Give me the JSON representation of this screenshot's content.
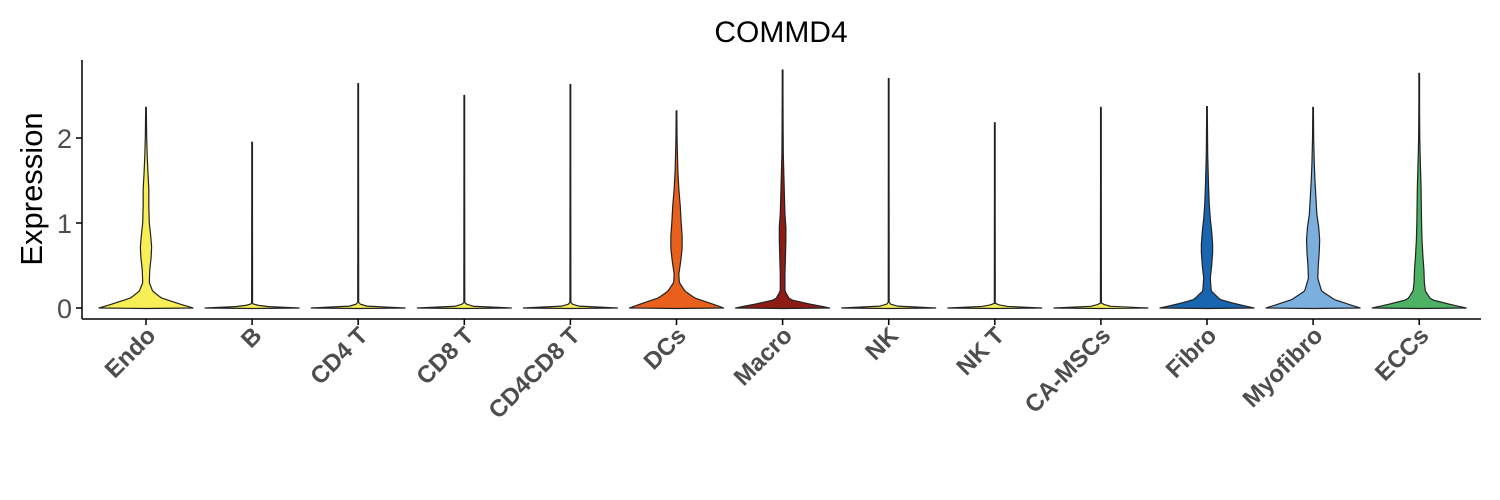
{
  "chart_data": {
    "type": "violin",
    "title": "COMMD4",
    "xlabel": "",
    "ylabel": "Expression",
    "ylim": [
      -0.1,
      2.85
    ],
    "yticks": [
      0,
      1,
      2
    ],
    "grid": false,
    "legend": "none",
    "categories": [
      "Endo",
      "B",
      "CD4 T",
      "CD8 T",
      "CD4CD8 T",
      "DCs",
      "Macro",
      "NK",
      "NK T",
      "CA-MSCs",
      "Fibro",
      "Myofibro",
      "ECCs"
    ],
    "series": [
      {
        "category": "Endo",
        "color": "#F7EF55",
        "max": 2.36,
        "profile": [
          [
            0,
            1.0
          ],
          [
            0.05,
            0.7
          ],
          [
            0.12,
            0.32
          ],
          [
            0.2,
            0.14
          ],
          [
            0.3,
            0.07
          ],
          [
            0.45,
            0.08
          ],
          [
            0.6,
            0.11
          ],
          [
            0.72,
            0.12
          ],
          [
            0.85,
            0.1
          ],
          [
            1.0,
            0.07
          ],
          [
            1.2,
            0.06
          ],
          [
            1.4,
            0.06
          ],
          [
            1.6,
            0.04
          ],
          [
            1.8,
            0.025
          ],
          [
            2.0,
            0.015
          ],
          [
            2.2,
            0.01
          ],
          [
            2.36,
            0.006
          ]
        ]
      },
      {
        "category": "B",
        "color": "#F7EF55",
        "max": 1.95,
        "profile": [
          [
            0,
            1.0
          ],
          [
            0.02,
            0.2
          ],
          [
            0.05,
            0.01
          ],
          [
            1.95,
            0.006
          ]
        ]
      },
      {
        "category": "CD4 T",
        "color": "#F7EF55",
        "max": 2.64,
        "profile": [
          [
            0,
            1.0
          ],
          [
            0.02,
            0.2
          ],
          [
            0.05,
            0.01
          ],
          [
            2.64,
            0.006
          ]
        ]
      },
      {
        "category": "CD8 T",
        "color": "#F7EF55",
        "max": 2.5,
        "profile": [
          [
            0,
            1.0
          ],
          [
            0.02,
            0.2
          ],
          [
            0.05,
            0.01
          ],
          [
            2.5,
            0.006
          ]
        ]
      },
      {
        "category": "CD4CD8 T",
        "color": "#F7EF55",
        "max": 2.63,
        "profile": [
          [
            0,
            1.0
          ],
          [
            0.02,
            0.2
          ],
          [
            0.05,
            0.01
          ],
          [
            2.63,
            0.006
          ]
        ]
      },
      {
        "category": "DCs",
        "color": "#E8601C",
        "max": 2.32,
        "profile": [
          [
            0,
            1.0
          ],
          [
            0.05,
            0.75
          ],
          [
            0.12,
            0.38
          ],
          [
            0.2,
            0.18
          ],
          [
            0.3,
            0.06
          ],
          [
            0.4,
            0.05
          ],
          [
            0.55,
            0.09
          ],
          [
            0.7,
            0.12
          ],
          [
            0.85,
            0.12
          ],
          [
            1.0,
            0.1
          ],
          [
            1.2,
            0.08
          ],
          [
            1.4,
            0.05
          ],
          [
            1.6,
            0.03
          ],
          [
            1.8,
            0.02
          ],
          [
            2.0,
            0.012
          ],
          [
            2.32,
            0.006
          ]
        ]
      },
      {
        "category": "Macro",
        "color": "#8E1C15",
        "max": 2.8,
        "profile": [
          [
            0,
            1.0
          ],
          [
            0.05,
            0.55
          ],
          [
            0.1,
            0.15
          ],
          [
            0.2,
            0.05
          ],
          [
            0.4,
            0.05
          ],
          [
            0.6,
            0.06
          ],
          [
            0.8,
            0.07
          ],
          [
            0.95,
            0.07
          ],
          [
            1.1,
            0.05
          ],
          [
            1.3,
            0.04
          ],
          [
            1.5,
            0.03
          ],
          [
            1.8,
            0.015
          ],
          [
            2.2,
            0.01
          ],
          [
            2.8,
            0.006
          ]
        ]
      },
      {
        "category": "NK",
        "color": "#F7EF55",
        "max": 2.7,
        "profile": [
          [
            0,
            1.0
          ],
          [
            0.02,
            0.2
          ],
          [
            0.05,
            0.01
          ],
          [
            2.7,
            0.006
          ]
        ]
      },
      {
        "category": "NK T",
        "color": "#F7EF55",
        "max": 2.18,
        "profile": [
          [
            0,
            1.0
          ],
          [
            0.02,
            0.2
          ],
          [
            0.05,
            0.01
          ],
          [
            2.18,
            0.006
          ]
        ]
      },
      {
        "category": "CA-MSCs",
        "color": "#F7EF55",
        "max": 2.36,
        "profile": [
          [
            0,
            1.0
          ],
          [
            0.02,
            0.2
          ],
          [
            0.05,
            0.01
          ],
          [
            2.36,
            0.006
          ]
        ]
      },
      {
        "category": "Fibro",
        "color": "#1965B0",
        "max": 2.37,
        "profile": [
          [
            0,
            1.0
          ],
          [
            0.05,
            0.6
          ],
          [
            0.1,
            0.28
          ],
          [
            0.2,
            0.09
          ],
          [
            0.35,
            0.07
          ],
          [
            0.5,
            0.1
          ],
          [
            0.65,
            0.12
          ],
          [
            0.75,
            0.12
          ],
          [
            0.9,
            0.1
          ],
          [
            1.05,
            0.07
          ],
          [
            1.2,
            0.05
          ],
          [
            1.4,
            0.035
          ],
          [
            1.6,
            0.025
          ],
          [
            1.8,
            0.015
          ],
          [
            2.1,
            0.01
          ],
          [
            2.37,
            0.006
          ]
        ]
      },
      {
        "category": "Myofibro",
        "color": "#7BAFDE",
        "max": 2.36,
        "profile": [
          [
            0,
            1.0
          ],
          [
            0.05,
            0.72
          ],
          [
            0.1,
            0.45
          ],
          [
            0.2,
            0.18
          ],
          [
            0.35,
            0.1
          ],
          [
            0.5,
            0.11
          ],
          [
            0.65,
            0.13
          ],
          [
            0.8,
            0.14
          ],
          [
            0.95,
            0.12
          ],
          [
            1.1,
            0.08
          ],
          [
            1.3,
            0.06
          ],
          [
            1.5,
            0.04
          ],
          [
            1.7,
            0.025
          ],
          [
            2.0,
            0.012
          ],
          [
            2.36,
            0.006
          ]
        ]
      },
      {
        "category": "ECCs",
        "color": "#4EB265",
        "max": 2.76,
        "profile": [
          [
            0,
            1.0
          ],
          [
            0.05,
            0.6
          ],
          [
            0.1,
            0.25
          ],
          [
            0.2,
            0.13
          ],
          [
            0.3,
            0.11
          ],
          [
            0.45,
            0.1
          ],
          [
            0.6,
            0.08
          ],
          [
            0.8,
            0.06
          ],
          [
            1.0,
            0.05
          ],
          [
            1.2,
            0.045
          ],
          [
            1.4,
            0.04
          ],
          [
            1.6,
            0.03
          ],
          [
            1.8,
            0.02
          ],
          [
            2.0,
            0.012
          ],
          [
            2.3,
            0.008
          ],
          [
            2.76,
            0.005
          ]
        ]
      }
    ]
  }
}
